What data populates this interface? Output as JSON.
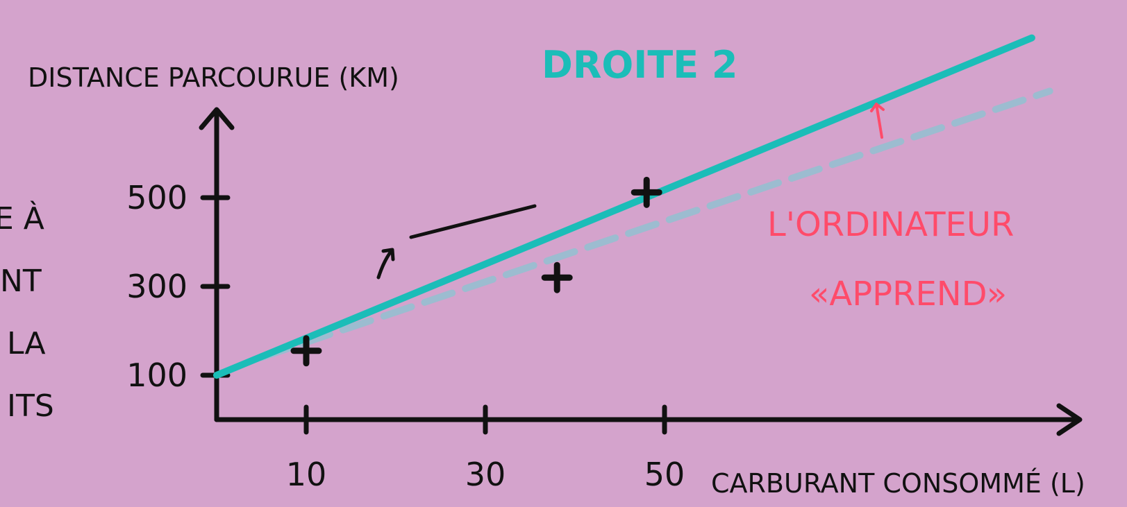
{
  "colors": {
    "background": "#d4a3cc",
    "axis": "#111111",
    "line2": "#1bbdb8",
    "line1_dashed": "#9cbcd0",
    "annotation_red": "#ff4b6a",
    "black": "#111111"
  },
  "left_text_fragments": [
    "E À",
    "NT",
    "LA",
    "ITS"
  ],
  "labels": {
    "droite2": "DROITE 2",
    "ordinateur_line1": "L'ORDINATEUR",
    "ordinateur_line2": "«APPREND»"
  },
  "chart_data": {
    "type": "line",
    "xlabel": "CARBURANT CONSOMMÉ (L)",
    "ylabel": "DISTANCE PARCOURUE (KM)",
    "xlim": [
      0,
      95
    ],
    "ylim": [
      0,
      640
    ],
    "x_ticks": [
      10,
      30,
      50
    ],
    "y_ticks": [
      100,
      300,
      500
    ],
    "points": [
      {
        "x": 10,
        "y": 155
      },
      {
        "x": 38,
        "y": 320
      },
      {
        "x": 48,
        "y": 512
      }
    ],
    "series": [
      {
        "name": "DROITE 2",
        "style": "solid",
        "x": [
          0,
          91
        ],
        "y": [
          100,
          860
        ]
      },
      {
        "style": "dashed",
        "x": [
          5,
          93
        ],
        "y": [
          140,
          740
        ]
      }
    ]
  }
}
